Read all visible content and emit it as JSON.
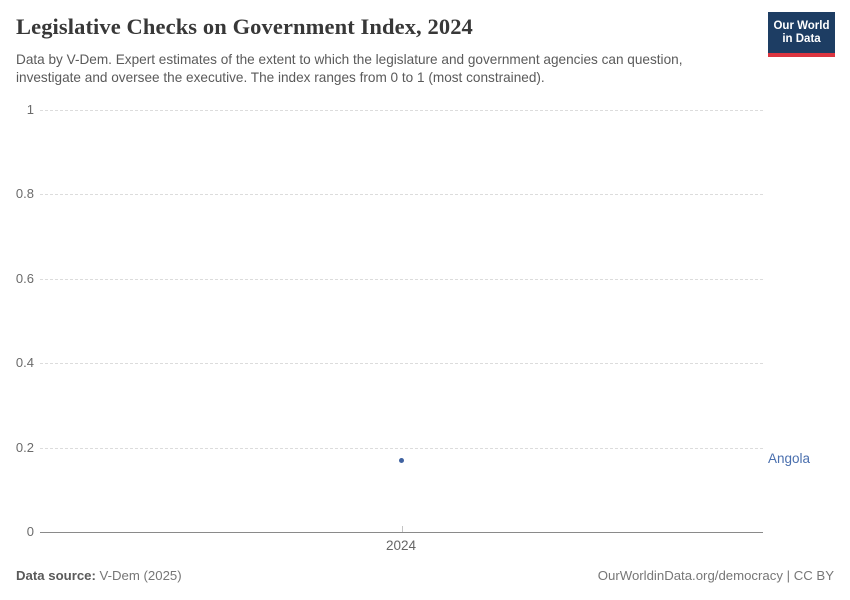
{
  "header": {
    "title": "Legislative Checks on Government Index, 2024",
    "subtitle": "Data by V-Dem. Expert estimates of the extent to which the legislature and government agencies can question,\ninvestigate and oversee the executive. The index ranges from 0 to 1 (most constrained)."
  },
  "logo": {
    "line1": "Our World",
    "line2": "in Data",
    "bg_color": "#1d3d63",
    "bar_color": "#dc3540"
  },
  "chart_data": {
    "type": "scatter",
    "title": "Legislative Checks on Government Index, 2024",
    "x": [
      2024
    ],
    "xticks": [
      2024
    ],
    "series": [
      {
        "name": "Angola",
        "values": [
          0.17
        ],
        "point_color": "#3f62a0",
        "label_color": "#4a6fae"
      }
    ],
    "xlabel": "",
    "ylabel": "",
    "ylim": [
      0,
      1
    ],
    "yticks": [
      0,
      0.2,
      0.4,
      0.6,
      0.8,
      1
    ],
    "grid": "horizontal-dashed",
    "legend_position": "right-entity-label"
  },
  "footer": {
    "source_label": "Data source:",
    "source_value": " V-Dem (2025)",
    "rights": "OurWorldinData.org/democracy | CC BY"
  }
}
